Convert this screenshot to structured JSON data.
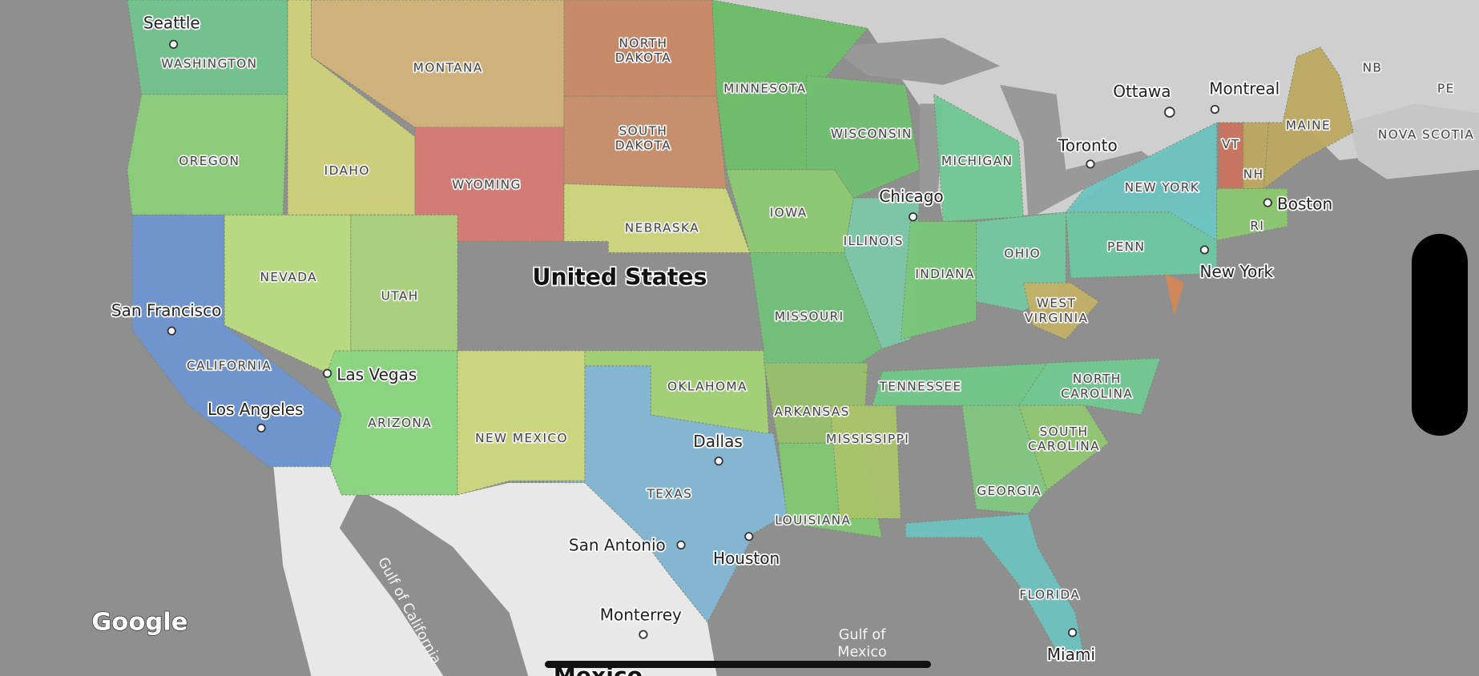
{
  "map": {
    "country_labels": [
      "United States",
      "Mexico"
    ],
    "water_labels": [
      "Gulf of California",
      "Gulf of\nMexico"
    ],
    "attribution": "Google",
    "states": [
      {
        "label": "WASHINGTON",
        "color": "#72c48c"
      },
      {
        "label": "OREGON",
        "color": "#8dcf7b"
      },
      {
        "label": "CALIFORNIA",
        "color": "#6f95d2"
      },
      {
        "label": "NEVADA",
        "color": "#bcdc82"
      },
      {
        "label": "IDAHO",
        "color": "#d0d27c"
      },
      {
        "label": "MONTANA",
        "color": "#d3b37b"
      },
      {
        "label": "WYOMING",
        "color": "#d67c74"
      },
      {
        "label": "UTAH",
        "color": "#aad47f"
      },
      {
        "label": "ARIZONA",
        "color": "#8bd780"
      },
      {
        "label": "NEW MEXICO",
        "color": "#cfd97f"
      },
      {
        "label": "NORTH\nDAKOTA",
        "color": "#c98a68"
      },
      {
        "label": "SOUTH\nDAKOTA",
        "color": "#c98f6c"
      },
      {
        "label": "NEBRASKA",
        "color": "#cfd77f"
      },
      {
        "label": "TEXAS",
        "color": "#84b9d5"
      },
      {
        "label": "OKLAHOMA",
        "color": "#a5d375"
      },
      {
        "label": "MINNESOTA",
        "color": "#6dbf6b"
      },
      {
        "label": "IOWA",
        "color": "#8ecb73"
      },
      {
        "label": "MISSOURI",
        "color": "#72c17a"
      },
      {
        "label": "ARKANSAS",
        "color": "#98c16c"
      },
      {
        "label": "LOUISIANA",
        "color": "#82c874"
      },
      {
        "label": "MISSISSIPPI",
        "color": "#aac46b"
      },
      {
        "label": "WISCONSIN",
        "color": "#72c072"
      },
      {
        "label": "ILLINOIS",
        "color": "#7ec8aa"
      },
      {
        "label": "MICHIGAN",
        "color": "#70c892"
      },
      {
        "label": "INDIANA",
        "color": "#7ac87a"
      },
      {
        "label": "OHIO",
        "color": "#74c8a2"
      },
      {
        "label": "TENNESSEE",
        "color": "#72c88a"
      },
      {
        "label": "WEST\nVIRGINIA",
        "color": "#c4b168"
      },
      {
        "label": "NORTH\nCAROLINA",
        "color": "#72c892"
      },
      {
        "label": "SOUTH\nCAROLINA",
        "color": "#92c872"
      },
      {
        "label": "GEORGIA",
        "color": "#82c882"
      },
      {
        "label": "FLORIDA",
        "color": "#6ec2c2"
      },
      {
        "label": "PENN",
        "color": "#6ec8a2"
      },
      {
        "label": "NEW YORK",
        "color": "#6ec4c2"
      },
      {
        "label": "VT",
        "color": "#c9745f"
      },
      {
        "label": "NH",
        "color": "#bda962"
      },
      {
        "label": "MAINE",
        "color": "#bda962"
      },
      {
        "label": "RI",
        "color": "#8cc870"
      }
    ],
    "region_labels": [
      "NB",
      "PE",
      "NOVA SCOTIA"
    ],
    "cities": [
      "Seattle",
      "San Francisco",
      "Las Vegas",
      "Los Angeles",
      "Dallas",
      "San Antonio",
      "Houston",
      "Chicago",
      "Toronto",
      "Ottawa",
      "Montreal",
      "Boston",
      "New York",
      "Miami",
      "Monterrey"
    ],
    "colors": {
      "water": "#8f8f8f",
      "canada": "#cfcfcf",
      "mexico": "#e8e8e8"
    }
  }
}
